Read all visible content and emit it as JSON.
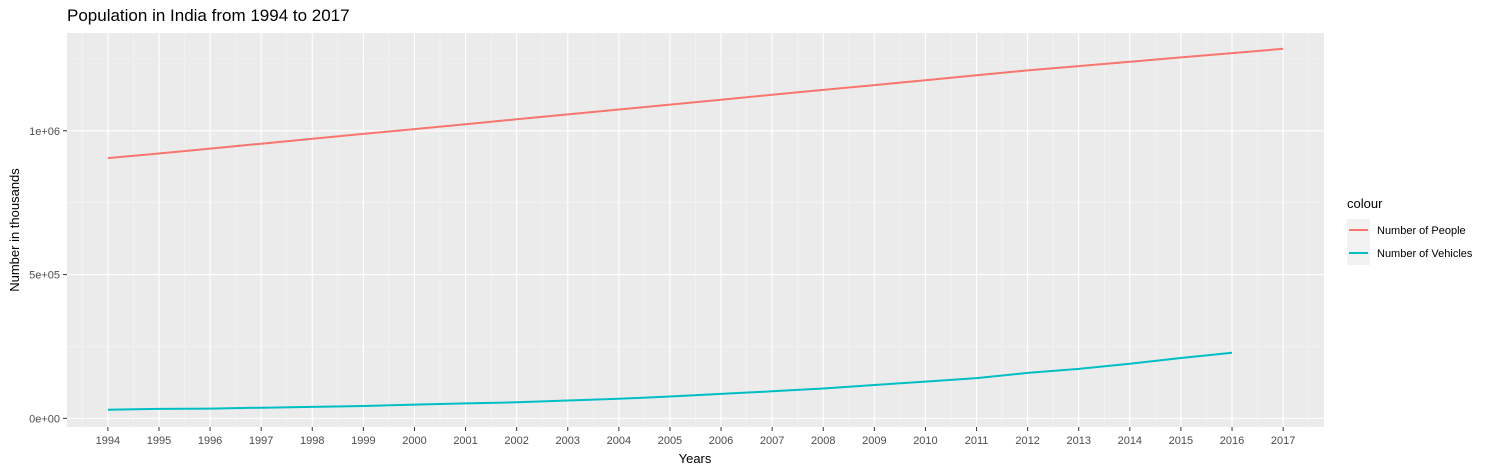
{
  "chart_data": {
    "type": "line",
    "title": "Population in India from 1994 to 2017",
    "xlabel": "Years",
    "ylabel": "Number in thousands",
    "x": [
      1994,
      1995,
      1996,
      1997,
      1998,
      1999,
      2000,
      2001,
      2002,
      2003,
      2004,
      2005,
      2006,
      2007,
      2008,
      2009,
      2010,
      2011,
      2012,
      2013,
      2014,
      2015,
      2016,
      2017
    ],
    "xlim": [
      1993.2,
      2017.8
    ],
    "ylim": [
      -30000,
      1340000
    ],
    "y_ticks": [
      0,
      500000,
      1000000
    ],
    "y_tick_labels": [
      "0e+00",
      "5e+05",
      "1e+06"
    ],
    "grid": true,
    "legend": {
      "title": "colour",
      "position": "right"
    },
    "series": [
      {
        "name": "Number of People",
        "color": "#F8766D",
        "x": [
          1994,
          1995,
          1996,
          1997,
          1998,
          1999,
          2000,
          2001,
          2002,
          2003,
          2004,
          2005,
          2006,
          2007,
          2008,
          2009,
          2010,
          2011,
          2012,
          2013,
          2014,
          2015,
          2016,
          2017
        ],
        "values": [
          905000,
          921000,
          938000,
          955000,
          972000,
          989000,
          1006000,
          1023000,
          1040000,
          1057000,
          1074000,
          1091000,
          1108000,
          1125000,
          1142000,
          1159000,
          1176000,
          1193000,
          1210000,
          1225000,
          1240000,
          1255000,
          1270000,
          1285000
        ]
      },
      {
        "name": "Number of Vehicles",
        "color": "#00BFC4",
        "x": [
          1994,
          1995,
          1996,
          1997,
          1998,
          1999,
          2000,
          2001,
          2002,
          2003,
          2004,
          2005,
          2006,
          2007,
          2008,
          2009,
          2010,
          2011,
          2012,
          2013,
          2014,
          2015,
          2016
        ],
        "values": [
          30000,
          33000,
          34000,
          37000,
          40000,
          43000,
          48000,
          52000,
          56000,
          62000,
          68000,
          76000,
          85000,
          94000,
          104000,
          116000,
          128000,
          140000,
          158000,
          172000,
          190000,
          210000,
          228000
        ]
      }
    ]
  }
}
